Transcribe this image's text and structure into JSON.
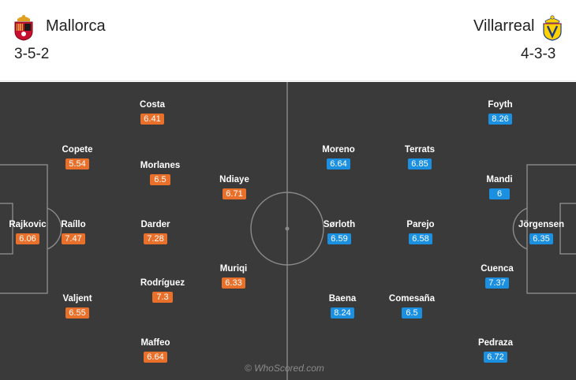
{
  "home": {
    "name": "Mallorca",
    "formation": "3-5-2",
    "color": "#e8702a",
    "crest_icon": "mallorca-crest-icon",
    "players": [
      {
        "name": "Rajkovic",
        "rating": "6.06"
      },
      {
        "name": "Raíllo",
        "rating": "7.47"
      },
      {
        "name": "Copete",
        "rating": "5.54"
      },
      {
        "name": "Valjent",
        "rating": "6.55"
      },
      {
        "name": "Costa",
        "rating": "6.41"
      },
      {
        "name": "Morlanes",
        "rating": "6.5"
      },
      {
        "name": "Darder",
        "rating": "7.28"
      },
      {
        "name": "Rodríguez",
        "rating": "7.3"
      },
      {
        "name": "Maffeo",
        "rating": "6.64"
      },
      {
        "name": "Ndiaye",
        "rating": "6.71"
      },
      {
        "name": "Muriqi",
        "rating": "6.33"
      }
    ]
  },
  "away": {
    "name": "Villarreal",
    "formation": "4-3-3",
    "color": "#1b8fe0",
    "crest_icon": "villarreal-crest-icon",
    "players": [
      {
        "name": "Moreno",
        "rating": "6.64"
      },
      {
        "name": "Sørloth",
        "rating": "6.59"
      },
      {
        "name": "Baena",
        "rating": "8.24"
      },
      {
        "name": "Terrats",
        "rating": "6.85"
      },
      {
        "name": "Parejo",
        "rating": "6.58"
      },
      {
        "name": "Comesaña",
        "rating": "6.5"
      },
      {
        "name": "Foyth",
        "rating": "8.26"
      },
      {
        "name": "Mandi",
        "rating": "6"
      },
      {
        "name": "Cuenca",
        "rating": "7.37"
      },
      {
        "name": "Pedraza",
        "rating": "6.72"
      },
      {
        "name": "Jörgensen",
        "rating": "6.35"
      }
    ]
  },
  "watermark": "© WhoScored.com",
  "pitch_color": "#3a3a3a"
}
